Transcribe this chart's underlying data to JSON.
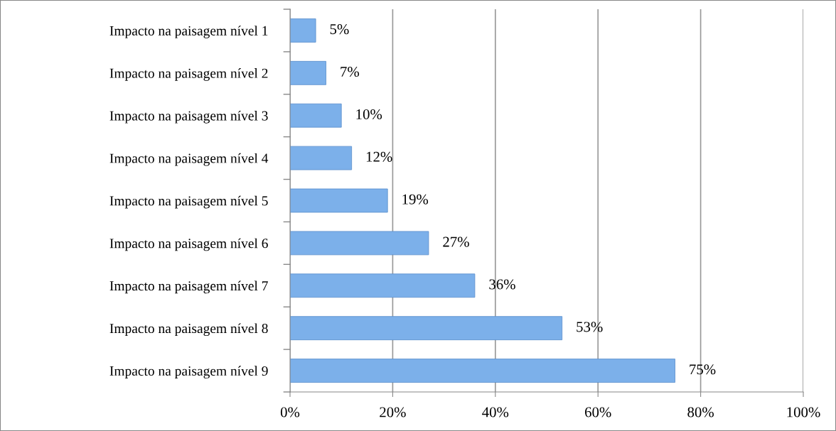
{
  "chart_data": {
    "type": "bar",
    "orientation": "horizontal",
    "categories": [
      "Impacto na paisagem nível 1",
      "Impacto na paisagem nível 2",
      "Impacto na paisagem nível 3",
      "Impacto na paisagem nível 4",
      "Impacto na paisagem nível 5",
      "Impacto na paisagem nível 6",
      "Impacto na paisagem nível 7",
      "Impacto na paisagem nível 8",
      "Impacto na paisagem nível 9"
    ],
    "values": [
      5,
      7,
      10,
      12,
      19,
      27,
      36,
      53,
      75
    ],
    "value_labels": [
      "5%",
      "7%",
      "10%",
      "12%",
      "19%",
      "27%",
      "36%",
      "53%",
      "75%"
    ],
    "color": "#7cb0ea",
    "xlim": [
      0,
      100
    ],
    "xticks": [
      {
        "value": 0,
        "label": "0%"
      },
      {
        "value": 20,
        "label": "20%"
      },
      {
        "value": 40,
        "label": "40%"
      },
      {
        "value": 60,
        "label": "60%"
      },
      {
        "value": 80,
        "label": "80%"
      },
      {
        "value": 100,
        "label": "100%"
      }
    ],
    "grid": "x"
  }
}
